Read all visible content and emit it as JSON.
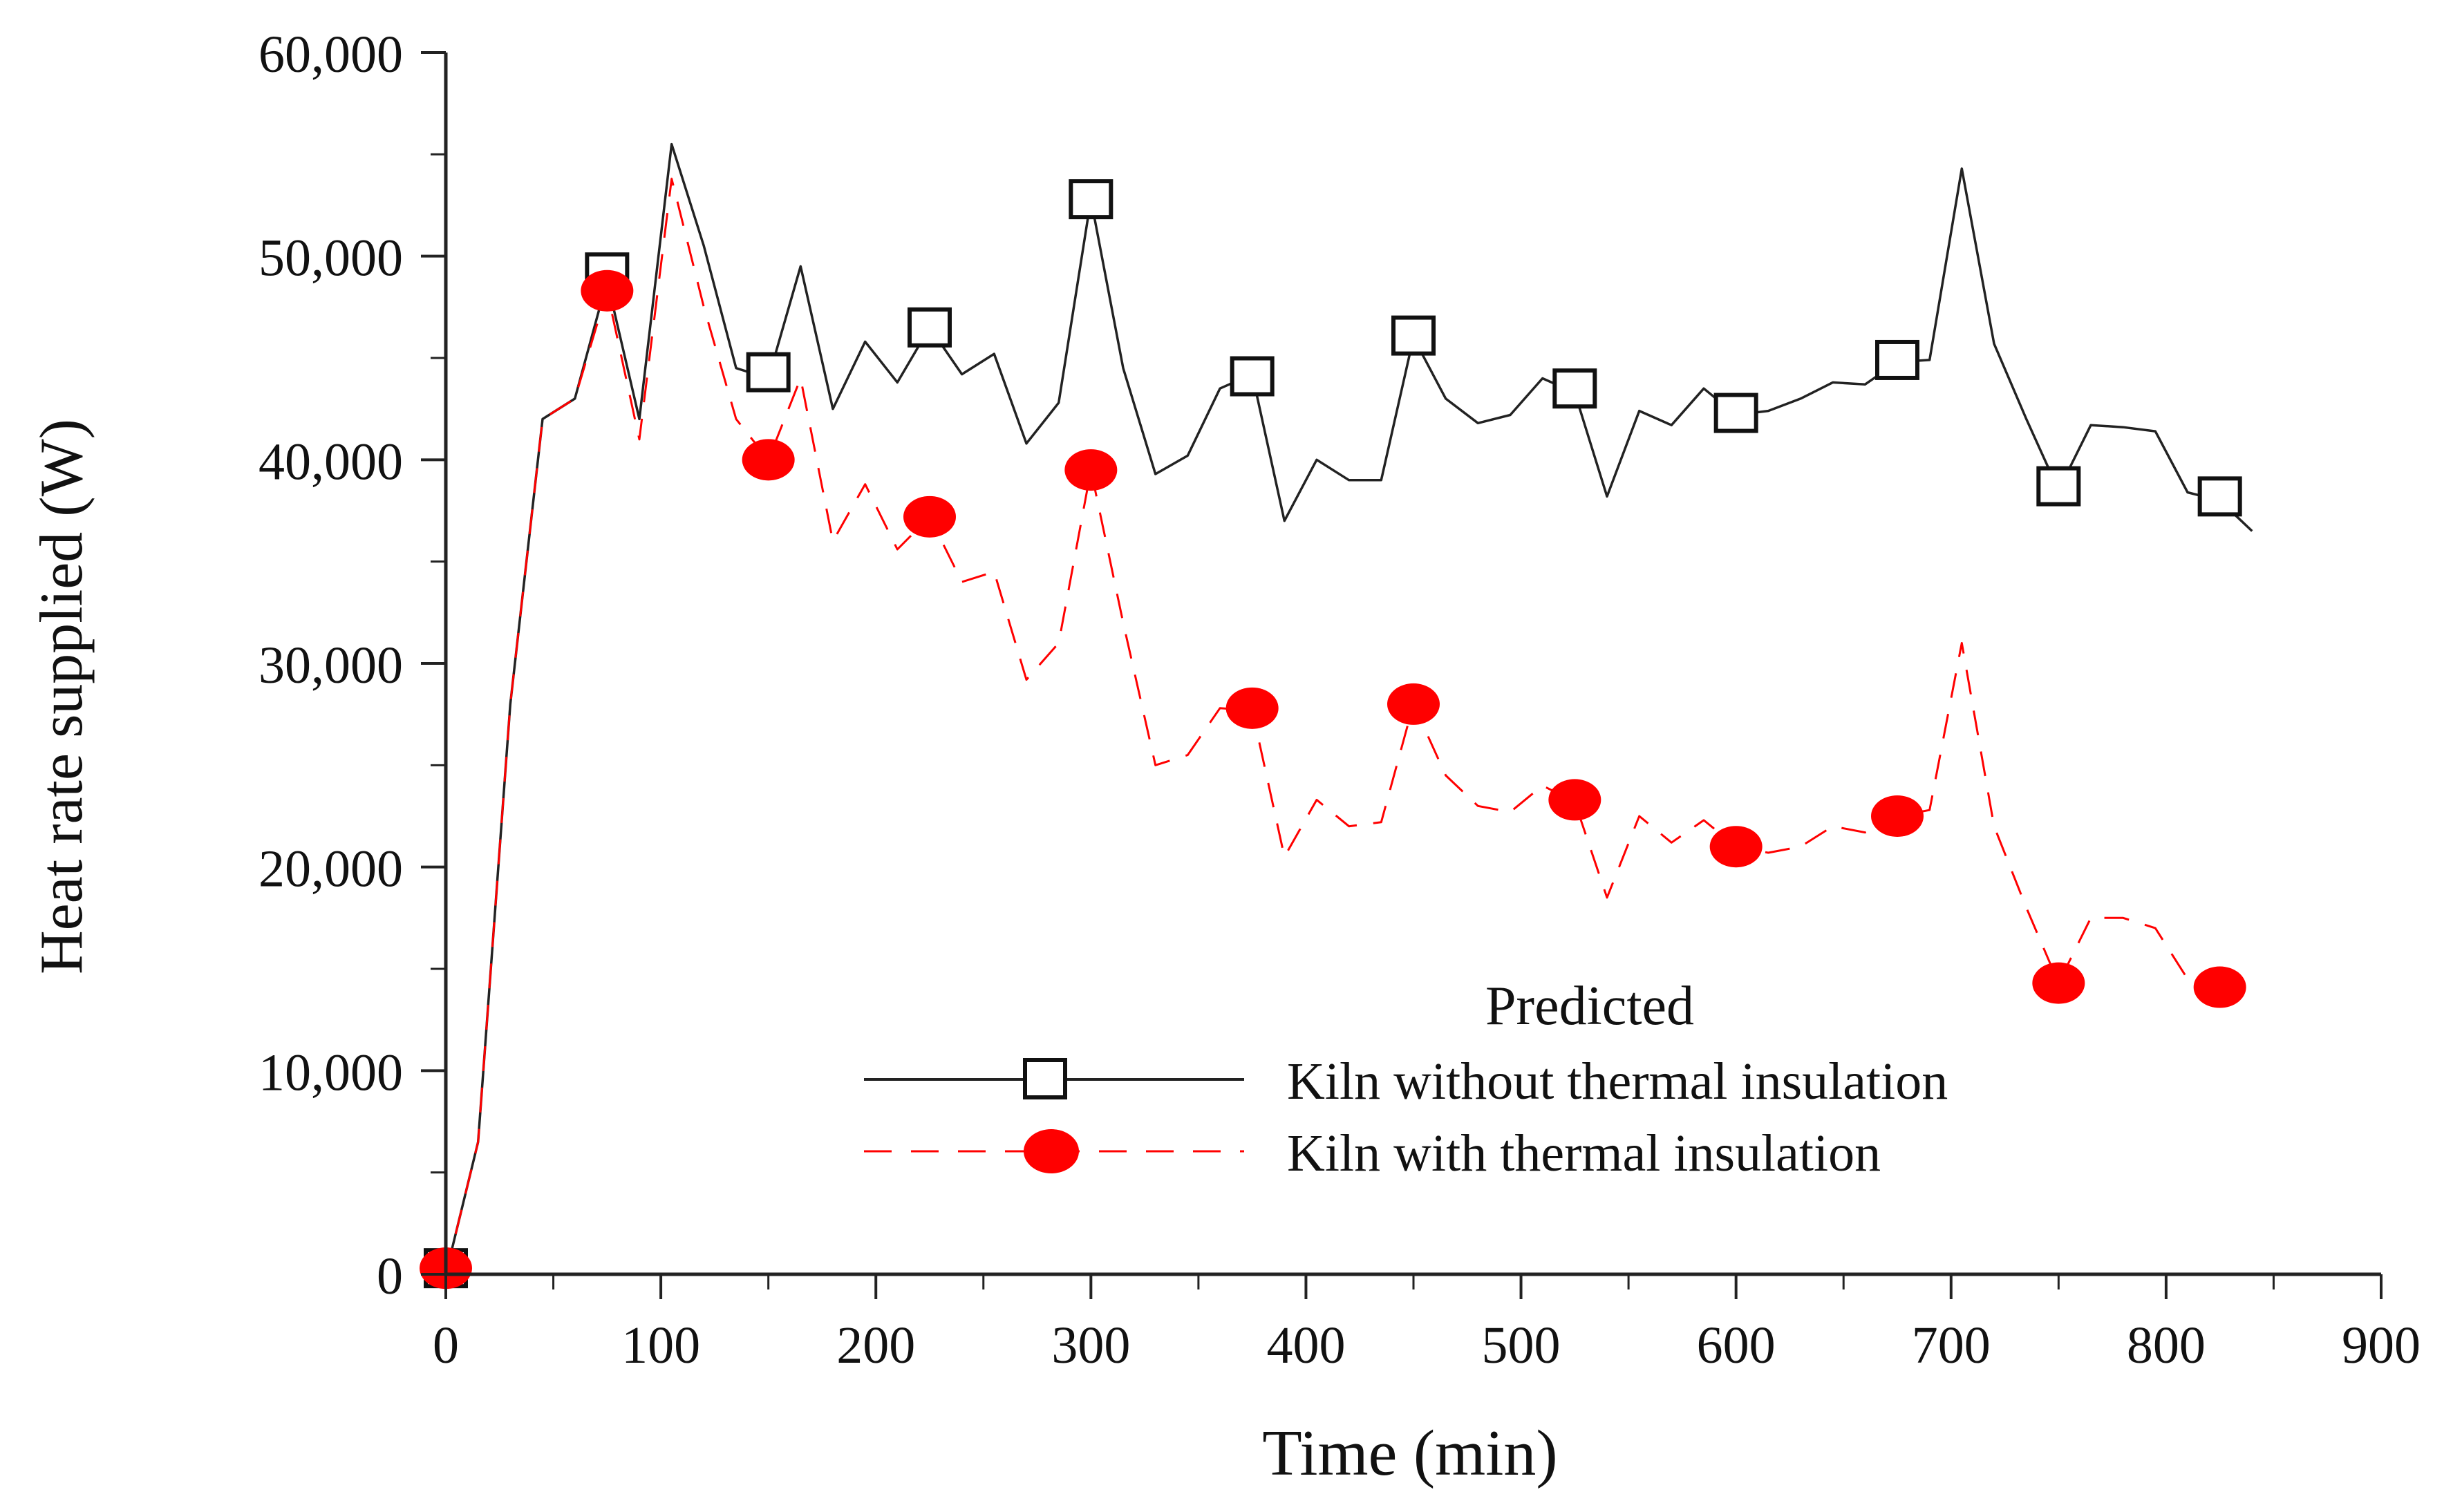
{
  "chart_data": {
    "type": "line",
    "title": "",
    "xlabel": "Time (min)",
    "ylabel": "Heat rate supplied (W)",
    "xlim": [
      0,
      900
    ],
    "ylim": [
      0,
      60000
    ],
    "x_major_ticks": [
      0,
      100,
      200,
      300,
      400,
      500,
      600,
      700,
      800,
      900
    ],
    "x_tick_labels": [
      "0",
      "100",
      "200",
      "300",
      "400",
      "500",
      "600",
      "700",
      "800",
      "900"
    ],
    "y_major_ticks": [
      0,
      10000,
      20000,
      30000,
      40000,
      50000,
      60000
    ],
    "y_tick_labels": [
      "0",
      "10,000",
      "20,000",
      "30,000",
      "40,000",
      "50,000",
      "60,000"
    ],
    "grid": false,
    "legend": {
      "title": "Predicted",
      "position": "bottom-right",
      "entries": [
        "Kiln without thermal insulation",
        "Kiln with thermal insulation"
      ]
    },
    "series": [
      {
        "name": "Kiln without thermal insulation",
        "color": "#222222",
        "line_style": "solid",
        "marker": "open-square",
        "x": [
          0,
          15,
          30,
          45,
          60,
          75,
          90,
          105,
          120,
          135,
          150,
          165,
          180,
          195,
          210,
          225,
          240,
          255,
          270,
          285,
          300,
          315,
          330,
          345,
          360,
          375,
          390,
          405,
          420,
          435,
          450,
          465,
          480,
          495,
          510,
          525,
          540,
          555,
          570,
          585,
          600,
          615,
          630,
          645,
          660,
          675,
          690,
          705,
          720,
          735,
          750,
          765,
          780,
          795,
          810,
          825,
          840
        ],
        "y": [
          0,
          6500,
          28000,
          42000,
          43000,
          48800,
          42000,
          55500,
          50500,
          44500,
          44000,
          49500,
          42500,
          45800,
          43800,
          46500,
          44200,
          45200,
          40800,
          42800,
          52800,
          44500,
          39300,
          40200,
          43500,
          44200,
          37000,
          40000,
          39000,
          39000,
          46000,
          43000,
          41800,
          42200,
          44000,
          43300,
          38200,
          42400,
          41700,
          43500,
          42200,
          42400,
          43000,
          43800,
          43700,
          44800,
          44900,
          54300,
          45700,
          42000,
          38500,
          41700,
          41600,
          41400,
          38400,
          38000,
          36500
        ],
        "marker_x": [
          0,
          75,
          150,
          225,
          300,
          375,
          450,
          525,
          600,
          675,
          750,
          825
        ],
        "marker_y": [
          300,
          49200,
          44300,
          46500,
          52800,
          44100,
          46100,
          43500,
          42300,
          44900,
          38700,
          38200
        ]
      },
      {
        "name": "Kiln with thermal insulation",
        "color": "#ff0000",
        "line_style": "dashed",
        "marker": "filled-circle",
        "x": [
          0,
          15,
          30,
          45,
          60,
          75,
          90,
          105,
          120,
          135,
          150,
          165,
          180,
          195,
          210,
          225,
          240,
          255,
          270,
          285,
          300,
          315,
          330,
          345,
          360,
          375,
          390,
          405,
          420,
          435,
          450,
          465,
          480,
          495,
          510,
          525,
          540,
          555,
          570,
          585,
          600,
          615,
          630,
          645,
          660,
          675,
          690,
          705,
          720,
          735,
          750,
          765,
          780,
          795,
          810,
          825
        ],
        "y": [
          0,
          6500,
          28000,
          42000,
          43000,
          48300,
          41000,
          53800,
          47500,
          42000,
          40000,
          44000,
          36000,
          38800,
          35600,
          37200,
          34000,
          34500,
          29200,
          31000,
          39500,
          32000,
          25000,
          25500,
          27800,
          27700,
          20500,
          23300,
          22000,
          22200,
          28000,
          24500,
          23000,
          22700,
          24000,
          23200,
          18500,
          22500,
          21200,
          22300,
          21000,
          20700,
          21000,
          22000,
          21700,
          22500,
          22800,
          31000,
          22000,
          18000,
          14300,
          17500,
          17500,
          17000,
          14500,
          14100
        ],
        "marker_x": [
          0,
          75,
          150,
          225,
          300,
          375,
          450,
          525,
          600,
          675,
          750,
          825
        ],
        "marker_y": [
          300,
          48300,
          40000,
          37200,
          39500,
          27800,
          28000,
          23300,
          21000,
          22500,
          14300,
          14100
        ]
      }
    ]
  }
}
